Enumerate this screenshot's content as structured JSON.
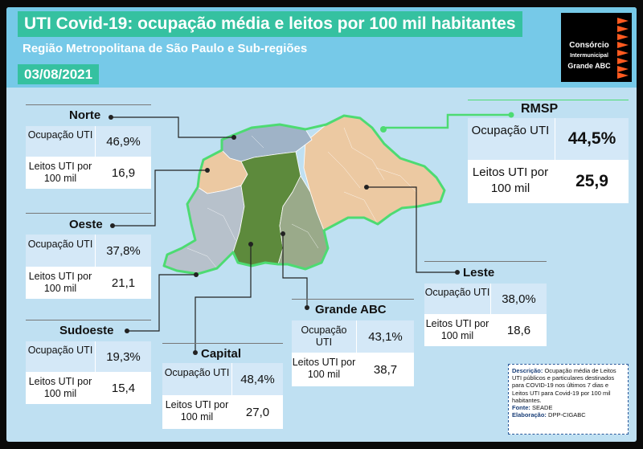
{
  "header": {
    "title": "UTI Covid-19: ocupação média e leitos por 100 mil habitantes",
    "subtitle": "Região Metropolitana de São Paulo e Sub-regiões",
    "date": "03/08/2021"
  },
  "logo": {
    "line1": "Consórcio",
    "line2": "Intermunicipal",
    "line3": "Grande ABC"
  },
  "colors": {
    "norte": "#9fb3c7",
    "oeste": "#ecc9a2",
    "sudoeste": "#b7c1cb",
    "capital": "#5d8a3c",
    "grande_abc": "#9aaa8a",
    "leste": "#ecc9a2",
    "outline": "#4ddb72",
    "accent": "#35c1a0"
  },
  "regions": {
    "rmsp": {
      "name": "RMSP",
      "ocupacao_label": "Ocupação UTI",
      "ocupacao": "44,5%",
      "leitos_label": "Leitos UTI por 100 mil",
      "leitos": "25,9"
    },
    "norte": {
      "name": "Norte",
      "ocupacao_label": "Ocupação UTI",
      "ocupacao": "46,9%",
      "leitos_label": "Leitos UTI por 100 mil",
      "leitos": "16,9"
    },
    "oeste": {
      "name": "Oeste",
      "ocupacao_label": "Ocupação UTI",
      "ocupacao": "37,8%",
      "leitos_label": "Leitos UTI por 100 mil",
      "leitos": "21,1"
    },
    "sudoeste": {
      "name": "Sudoeste",
      "ocupacao_label": "Ocupação UTI",
      "ocupacao": "19,3%",
      "leitos_label": "Leitos UTI por 100 mil",
      "leitos": "15,4"
    },
    "capital": {
      "name": "Capital",
      "ocupacao_label": "Ocupação UTI",
      "ocupacao": "48,4%",
      "leitos_label": "Leitos UTI por 100 mil",
      "leitos": "27,0"
    },
    "grande_abc": {
      "name": "Grande ABC",
      "ocupacao_label": "Ocupação UTI",
      "ocupacao": "43,1%",
      "leitos_label": "Leitos UTI por 100 mil",
      "leitos": "38,7"
    },
    "leste": {
      "name": "Leste",
      "ocupacao_label": "Ocupação UTI",
      "ocupacao": "38,0%",
      "leitos_label": "Leitos UTI por 100 mil",
      "leitos": "18,6"
    }
  },
  "note": {
    "descricao_label": "Descrição:",
    "descricao": "Ocupação média de Leitos UTI públicos e particulares destinados para COVID-19 nos últimos 7 dias e Leitos UTI para Covid-19 por 100 mil habitantes.",
    "fonte_label": "Fonte:",
    "fonte": "SEADE",
    "elaboracao_label": "Elaboração:",
    "elaboracao": "DPP-CIGABC"
  }
}
